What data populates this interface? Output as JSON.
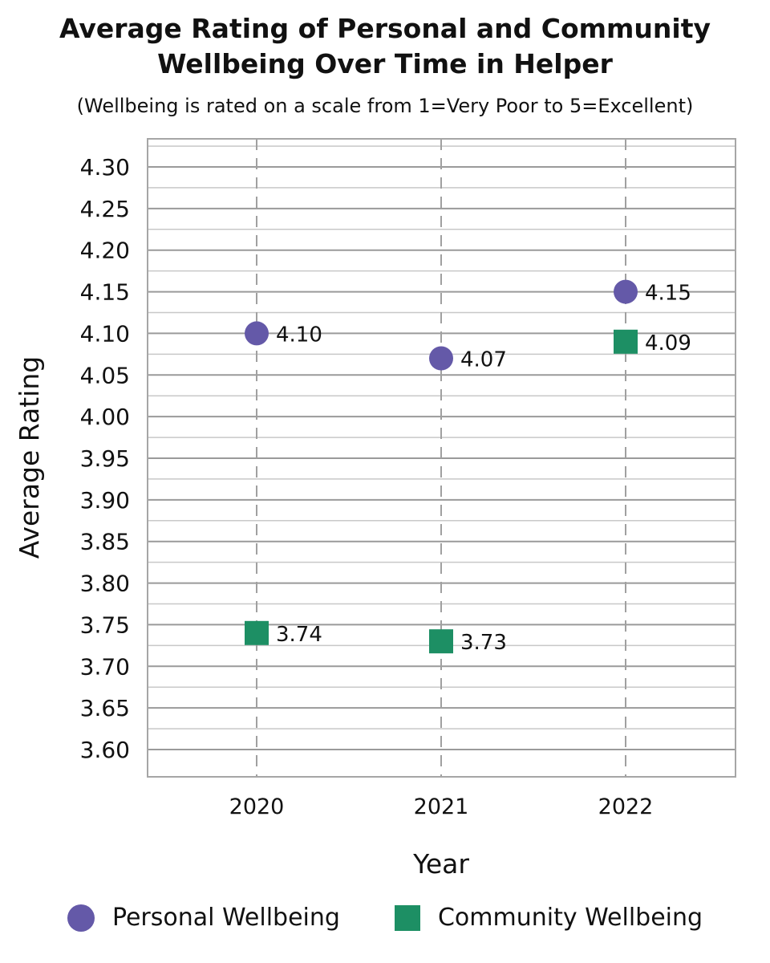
{
  "chart_data": {
    "type": "scatter",
    "title": "Average Rating of Personal and Community Wellbeing Over Time in Helper",
    "subtitle": "(Wellbeing is rated on a scale from 1=Very Poor to 5=Excellent)",
    "xlabel": "Year",
    "ylabel": "Average Rating",
    "categories": [
      "2020",
      "2021",
      "2022"
    ],
    "ylim": [
      3.585,
      4.335
    ],
    "yticks": [
      "4.30",
      "4.25",
      "4.20",
      "4.15",
      "4.10",
      "4.05",
      "4.00",
      "3.95",
      "3.90",
      "3.85",
      "3.80",
      "3.75",
      "3.70",
      "3.65",
      "3.60"
    ],
    "grid": true,
    "legend_position": "bottom",
    "series": [
      {
        "name": "Personal Wellbeing",
        "marker": "circle",
        "color": "#6459a8",
        "values": [
          4.1,
          4.07,
          4.15
        ],
        "labels": [
          "4.10",
          "4.07",
          "4.15"
        ]
      },
      {
        "name": "Community Wellbeing",
        "marker": "square",
        "color": "#1d8f64",
        "values": [
          3.74,
          3.73,
          4.09
        ],
        "labels": [
          "3.74",
          "3.73",
          "4.09"
        ]
      }
    ]
  }
}
